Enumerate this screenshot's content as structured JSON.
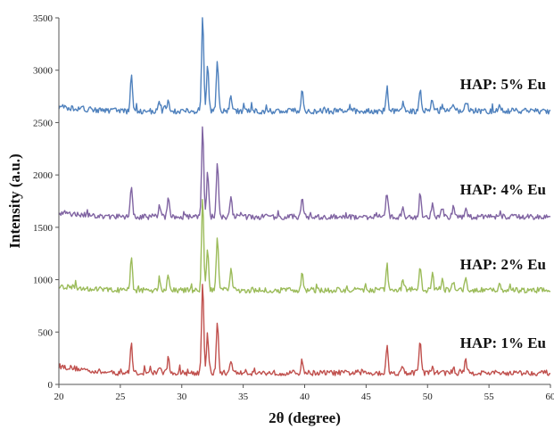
{
  "chart_data": {
    "type": "line",
    "title": "",
    "xlabel": "2θ (degree)",
    "ylabel": "Intensity (a.u.)",
    "xlim": [
      20,
      60
    ],
    "ylim": [
      0,
      3500
    ],
    "xticks": [
      20,
      25,
      30,
      35,
      40,
      45,
      50,
      55,
      60
    ],
    "yticks": [
      0,
      500,
      1000,
      1500,
      2000,
      2500,
      3000,
      3500
    ],
    "xtick_labels": [
      "20",
      "25",
      "30",
      "35",
      "40",
      "45",
      "50",
      "55",
      "60"
    ],
    "ytick_labels": [
      "0",
      "500",
      "1000",
      "1500",
      "2000",
      "2500",
      "3000",
      "3500"
    ],
    "grid": false,
    "series": [
      {
        "name": "HAP: 1% Eu",
        "color": "#c0504d",
        "baseline": 110,
        "peaks": [
          [
            25.9,
            390
          ],
          [
            28.2,
            180
          ],
          [
            28.9,
            250
          ],
          [
            31.7,
            1000
          ],
          [
            32.1,
            480
          ],
          [
            32.9,
            600
          ],
          [
            34.0,
            240
          ],
          [
            39.8,
            230
          ],
          [
            46.7,
            360
          ],
          [
            48.0,
            180
          ],
          [
            49.4,
            430
          ],
          [
            50.4,
            160
          ],
          [
            51.2,
            130
          ],
          [
            52.1,
            150
          ],
          [
            53.1,
            250
          ],
          [
            55.9,
            100
          ]
        ]
      },
      {
        "name": "HAP: 2% Eu",
        "color": "#9bbb59",
        "baseline": 900,
        "peaks": [
          [
            25.9,
            1200
          ],
          [
            28.2,
            1000
          ],
          [
            28.9,
            1050
          ],
          [
            31.7,
            1780
          ],
          [
            32.1,
            1320
          ],
          [
            32.9,
            1430
          ],
          [
            34.0,
            1090
          ],
          [
            39.8,
            1080
          ],
          [
            46.7,
            1140
          ],
          [
            48.0,
            1000
          ],
          [
            49.4,
            1130
          ],
          [
            50.4,
            1050
          ],
          [
            51.2,
            990
          ],
          [
            52.1,
            990
          ],
          [
            53.1,
            1000
          ],
          [
            55.9,
            960
          ]
        ]
      },
      {
        "name": "HAP: 4% Eu",
        "color": "#8064a2",
        "baseline": 1600,
        "peaks": [
          [
            25.9,
            1900
          ],
          [
            28.2,
            1720
          ],
          [
            28.9,
            1790
          ],
          [
            31.7,
            2490
          ],
          [
            32.1,
            2010
          ],
          [
            32.9,
            2120
          ],
          [
            34.0,
            1780
          ],
          [
            39.8,
            1780
          ],
          [
            46.7,
            1830
          ],
          [
            48.0,
            1690
          ],
          [
            49.4,
            1820
          ],
          [
            50.4,
            1740
          ],
          [
            51.2,
            1680
          ],
          [
            52.1,
            1690
          ],
          [
            53.1,
            1690
          ],
          [
            55.9,
            1650
          ]
        ]
      },
      {
        "name": "HAP: 5% Eu",
        "color": "#4f81bd",
        "baseline": 2610,
        "peaks": [
          [
            25.9,
            2960
          ],
          [
            28.2,
            2700
          ],
          [
            28.9,
            2720
          ],
          [
            31.7,
            3500
          ],
          [
            32.1,
            3040
          ],
          [
            32.9,
            3110
          ],
          [
            34.0,
            2760
          ],
          [
            39.8,
            2800
          ],
          [
            46.7,
            2830
          ],
          [
            48.0,
            2700
          ],
          [
            49.4,
            2830
          ],
          [
            50.4,
            2730
          ],
          [
            51.2,
            2680
          ],
          [
            52.1,
            2690
          ],
          [
            53.1,
            2690
          ],
          [
            55.9,
            2660
          ]
        ]
      }
    ]
  }
}
